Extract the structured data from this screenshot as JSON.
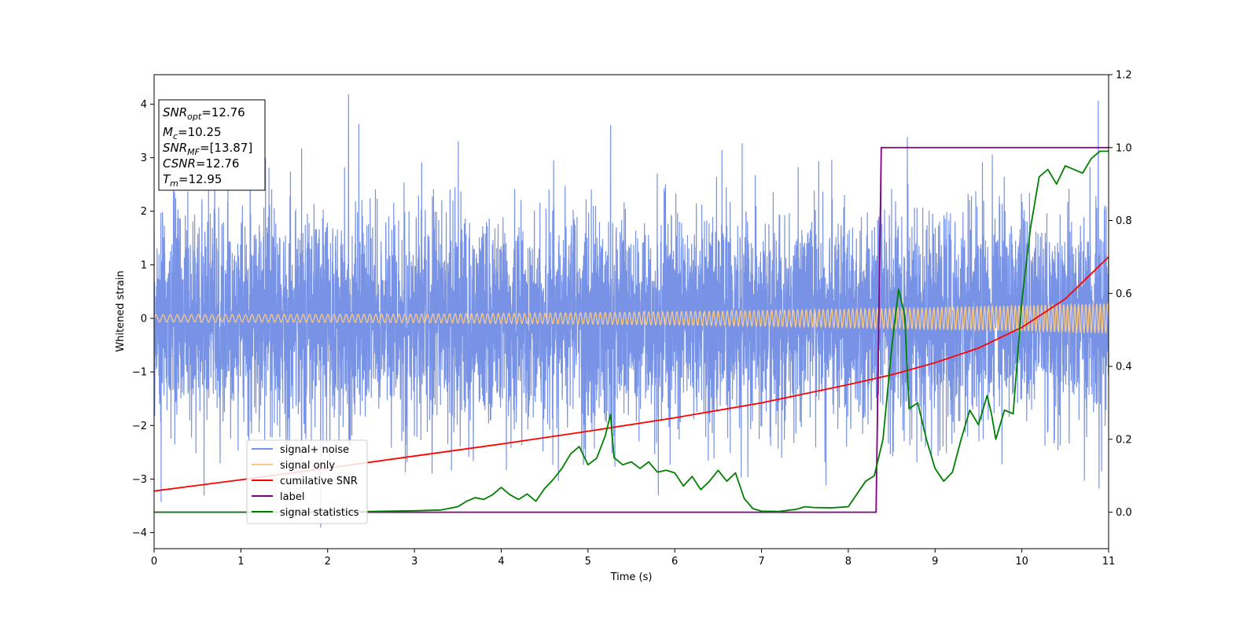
{
  "chart_data": {
    "type": "line",
    "xlabel": "Time (s)",
    "ylabel": "Whitened strain",
    "xlim": [
      0,
      11
    ],
    "ylim_left": [
      -4.3,
      4.55
    ],
    "ylim_right": [
      -0.1,
      1.2
    ],
    "x_ticks": [
      0,
      1,
      2,
      3,
      4,
      5,
      6,
      7,
      8,
      9,
      10,
      11
    ],
    "y_ticks_left": [
      -4,
      -3,
      -2,
      -1,
      0,
      1,
      2,
      3,
      4
    ],
    "y_ticks_right": [
      0.0,
      0.2,
      0.4,
      0.6,
      0.8,
      1.0,
      1.2
    ],
    "info_box": {
      "snr_opt": {
        "sym": "SNR",
        "sub": "opt",
        "value": "=12.76"
      },
      "mc": {
        "sym": "M",
        "sub": "c",
        "value": "=10.25"
      },
      "snr_mf": {
        "sym": "SNR",
        "sub": "MF",
        "value": "=[13.87]"
      },
      "csnr": {
        "sym": "CSNR",
        "sub": "",
        "value": "=12.76"
      },
      "tm": {
        "sym": "T",
        "sub": "m",
        "value": "=12.95"
      }
    },
    "legend": {
      "position": "lower-left",
      "entries": [
        {
          "label": "signal+ noise",
          "color": "#7893e6"
        },
        {
          "label": "signal only",
          "color": "#f7c98a"
        },
        {
          "label": "cumilative SNR",
          "color": "#ff0000"
        },
        {
          "label": "label",
          "color": "#800080"
        },
        {
          "label": "signal statistics",
          "color": "#008000"
        }
      ]
    },
    "series": [
      {
        "name": "signal+ noise",
        "axis": "left",
        "color": "#7893e6",
        "noise_std": 1.0,
        "peaks": [
          [
            2.24,
            4.18
          ],
          [
            2.36,
            3.62
          ],
          [
            10.88,
            4.06
          ],
          [
            8.68,
            3.38
          ],
          [
            5.26,
            3.6
          ],
          [
            1.92,
            -3.9
          ],
          [
            0.08,
            -3.42
          ],
          [
            10.92,
            -2.85
          ]
        ]
      },
      {
        "name": "signal only",
        "axis": "left",
        "color": "#f7c98a",
        "amplitude_start": 0.07,
        "amplitude_end": 0.28
      },
      {
        "name": "cumilative SNR",
        "axis": "right",
        "color": "#ff0000",
        "x": [
          0,
          1,
          2,
          3,
          4,
          5,
          6,
          7,
          8,
          8.5,
          9,
          9.5,
          10,
          10.5,
          11
        ],
        "y": [
          0.058,
          0.089,
          0.121,
          0.154,
          0.187,
          0.222,
          0.259,
          0.3,
          0.35,
          0.377,
          0.41,
          0.45,
          0.507,
          0.585,
          0.7
        ]
      },
      {
        "name": "label",
        "axis": "right",
        "color": "#800080",
        "x": [
          0,
          8.32,
          8.38,
          11
        ],
        "y": [
          0.0,
          0.0,
          1.0,
          1.0
        ]
      },
      {
        "name": "signal statistics",
        "axis": "right",
        "color": "#008000",
        "x": [
          0,
          0.5,
          1,
          1.5,
          2,
          2.5,
          3,
          3.3,
          3.5,
          3.6,
          3.7,
          3.8,
          3.9,
          4.0,
          4.1,
          4.2,
          4.3,
          4.4,
          4.5,
          4.6,
          4.7,
          4.8,
          4.9,
          5.0,
          5.1,
          5.2,
          5.26,
          5.3,
          5.4,
          5.5,
          5.6,
          5.7,
          5.8,
          5.9,
          6.0,
          6.1,
          6.2,
          6.3,
          6.4,
          6.5,
          6.6,
          6.7,
          6.8,
          6.9,
          7.0,
          7.2,
          7.4,
          7.5,
          7.6,
          7.8,
          8.0,
          8.1,
          8.2,
          8.3,
          8.4,
          8.5,
          8.58,
          8.65,
          8.7,
          8.8,
          8.9,
          9.0,
          9.1,
          9.2,
          9.3,
          9.4,
          9.5,
          9.6,
          9.65,
          9.7,
          9.8,
          9.9,
          10.0,
          10.1,
          10.2,
          10.3,
          10.4,
          10.5,
          10.6,
          10.7,
          10.8,
          10.9,
          11.0
        ],
        "y": [
          0.0,
          0.0,
          0.0,
          0.0,
          0.0,
          0.002,
          0.004,
          0.006,
          0.015,
          0.03,
          0.04,
          0.035,
          0.048,
          0.068,
          0.048,
          0.035,
          0.05,
          0.03,
          0.065,
          0.09,
          0.12,
          0.16,
          0.18,
          0.13,
          0.148,
          0.21,
          0.268,
          0.15,
          0.13,
          0.138,
          0.12,
          0.138,
          0.11,
          0.115,
          0.108,
          0.072,
          0.098,
          0.062,
          0.085,
          0.115,
          0.085,
          0.108,
          0.038,
          0.01,
          0.003,
          0.002,
          0.008,
          0.015,
          0.013,
          0.012,
          0.015,
          0.05,
          0.085,
          0.1,
          0.2,
          0.45,
          0.612,
          0.54,
          0.284,
          0.3,
          0.2,
          0.12,
          0.085,
          0.11,
          0.2,
          0.28,
          0.24,
          0.32,
          0.27,
          0.2,
          0.28,
          0.27,
          0.58,
          0.78,
          0.92,
          0.94,
          0.9,
          0.95,
          0.94,
          0.93,
          0.97,
          0.99,
          0.99
        ]
      }
    ]
  }
}
